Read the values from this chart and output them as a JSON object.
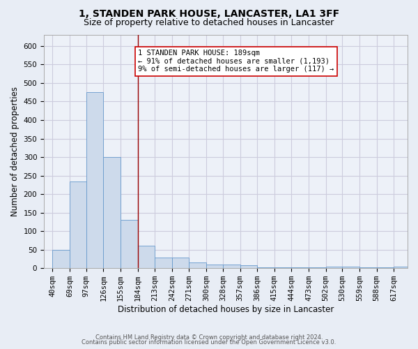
{
  "title1": "1, STANDEN PARK HOUSE, LANCASTER, LA1 3FF",
  "title2": "Size of property relative to detached houses in Lancaster",
  "xlabel": "Distribution of detached houses by size in Lancaster",
  "ylabel": "Number of detached properties",
  "footnote1": "Contains HM Land Registry data © Crown copyright and database right 2024.",
  "footnote2": "Contains public sector information licensed under the Open Government Licence v3.0.",
  "bin_labels": [
    "40sqm",
    "69sqm",
    "97sqm",
    "126sqm",
    "155sqm",
    "184sqm",
    "213sqm",
    "242sqm",
    "271sqm",
    "300sqm",
    "328sqm",
    "357sqm",
    "386sqm",
    "415sqm",
    "444sqm",
    "473sqm",
    "502sqm",
    "530sqm",
    "559sqm",
    "588sqm",
    "617sqm"
  ],
  "bin_edges": [
    40,
    69,
    97,
    126,
    155,
    184,
    213,
    242,
    271,
    300,
    328,
    357,
    386,
    415,
    444,
    473,
    502,
    530,
    559,
    588,
    617
  ],
  "bar_heights": [
    50,
    235,
    475,
    300,
    130,
    60,
    28,
    28,
    15,
    10,
    10,
    8,
    3,
    3,
    3,
    3,
    5,
    5,
    3,
    3,
    5
  ],
  "bar_color": "#cddaeb",
  "bar_edgecolor": "#6699cc",
  "vline_x": 184,
  "vline_color": "#990000",
  "annotation_line1": "1 STANDEN PARK HOUSE: 189sqm",
  "annotation_line2": "← 91% of detached houses are smaller (1,193)",
  "annotation_line3": "9% of semi-detached houses are larger (117) →",
  "annotation_box_edgecolor": "#cc0000",
  "annotation_box_facecolor": "#ffffff",
  "ylim": [
    0,
    630
  ],
  "yticks": [
    0,
    50,
    100,
    150,
    200,
    250,
    300,
    350,
    400,
    450,
    500,
    550,
    600
  ],
  "bg_color": "#e8edf5",
  "plot_bg_color": "#edf1f8",
  "grid_color": "#ccccdd",
  "title_fontsize": 10,
  "subtitle_fontsize": 9,
  "axis_label_fontsize": 8.5,
  "tick_fontsize": 7.5,
  "annotation_fontsize": 7.5
}
